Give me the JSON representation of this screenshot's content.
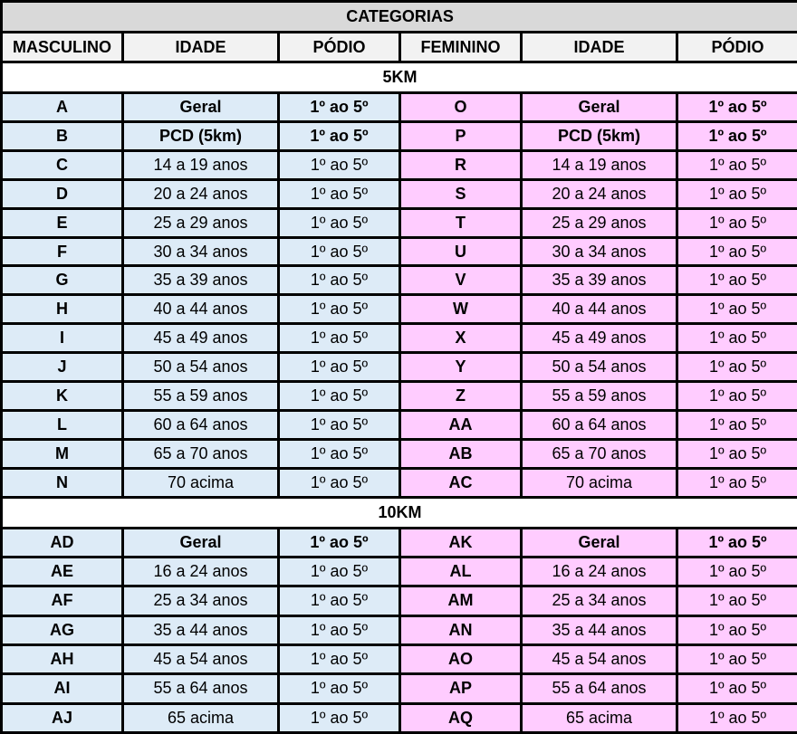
{
  "title": "CATEGORIAS",
  "headers": [
    "MASCULINO",
    "IDADE",
    "PÓDIO",
    "FEMININO",
    "IDADE",
    "PÓDIO"
  ],
  "colors": {
    "title_bg": "#d9d9d9",
    "header_bg": "#f2f2f2",
    "male_bg": "#ddebf7",
    "female_bg": "#ffccff"
  },
  "sections": [
    {
      "label": "5KM",
      "rows": [
        {
          "m": "A",
          "m_age": "Geral",
          "m_pod": "1º ao 5º",
          "f": "O",
          "f_age": "Geral",
          "f_pod": "1º ao 5º",
          "bold": true
        },
        {
          "m": "B",
          "m_age": "PCD (5km)",
          "m_pod": "1º ao 5º",
          "f": "P",
          "f_age": "PCD (5km)",
          "f_pod": "1º ao 5º",
          "bold": true
        },
        {
          "m": "C",
          "m_age": "14 a 19 anos",
          "m_pod": "1º ao 5º",
          "f": "R",
          "f_age": "14 a 19 anos",
          "f_pod": "1º ao 5º"
        },
        {
          "m": "D",
          "m_age": "20 a 24 anos",
          "m_pod": "1º ao 5º",
          "f": "S",
          "f_age": "20 a 24 anos",
          "f_pod": "1º ao 5º"
        },
        {
          "m": "E",
          "m_age": "25 a 29 anos",
          "m_pod": "1º ao 5º",
          "f": "T",
          "f_age": "25 a 29 anos",
          "f_pod": "1º ao 5º"
        },
        {
          "m": "F",
          "m_age": "30 a 34 anos",
          "m_pod": "1º ao 5º",
          "f": "U",
          "f_age": "30 a 34 anos",
          "f_pod": "1º ao 5º"
        },
        {
          "m": "G",
          "m_age": "35 a 39 anos",
          "m_pod": "1º ao 5º",
          "f": "V",
          "f_age": "35 a 39 anos",
          "f_pod": "1º ao 5º"
        },
        {
          "m": "H",
          "m_age": "40 a 44 anos",
          "m_pod": "1º ao 5º",
          "f": "W",
          "f_age": "40 a 44 anos",
          "f_pod": "1º ao 5º"
        },
        {
          "m": "I",
          "m_age": "45 a 49 anos",
          "m_pod": "1º ao 5º",
          "f": "X",
          "f_age": "45 a 49 anos",
          "f_pod": "1º ao 5º"
        },
        {
          "m": "J",
          "m_age": "50 a 54 anos",
          "m_pod": "1º ao 5º",
          "f": "Y",
          "f_age": "50 a 54 anos",
          "f_pod": "1º ao 5º"
        },
        {
          "m": "K",
          "m_age": "55 a 59 anos",
          "m_pod": "1º ao 5º",
          "f": "Z",
          "f_age": "55 a 59 anos",
          "f_pod": "1º ao 5º"
        },
        {
          "m": "L",
          "m_age": "60 a 64 anos",
          "m_pod": "1º ao 5º",
          "f": "AA",
          "f_age": "60 a 64 anos",
          "f_pod": "1º ao 5º"
        },
        {
          "m": "M",
          "m_age": "65 a 70 anos",
          "m_pod": "1º ao 5º",
          "f": "AB",
          "f_age": "65 a 70 anos",
          "f_pod": "1º ao 5º"
        },
        {
          "m": "N",
          "m_age": "70 acima",
          "m_pod": "1º ao 5º",
          "f": "AC",
          "f_age": "70 acima",
          "f_pod": "1º ao 5º"
        }
      ]
    },
    {
      "label": "10KM",
      "rows": [
        {
          "m": "AD",
          "m_age": "Geral",
          "m_pod": "1º ao 5º",
          "f": "AK",
          "f_age": "Geral",
          "f_pod": "1º ao 5º",
          "bold": true
        },
        {
          "m": "AE",
          "m_age": "16 a 24 anos",
          "m_pod": "1º ao 5º",
          "f": "AL",
          "f_age": "16 a 24 anos",
          "f_pod": "1º ao 5º"
        },
        {
          "m": "AF",
          "m_age": "25 a 34 anos",
          "m_pod": "1º ao 5º",
          "f": "AM",
          "f_age": "25 a 34 anos",
          "f_pod": "1º ao 5º"
        },
        {
          "m": "AG",
          "m_age": "35 a 44 anos",
          "m_pod": "1º ao 5º",
          "f": "AN",
          "f_age": "35 a 44 anos",
          "f_pod": "1º ao 5º"
        },
        {
          "m": "AH",
          "m_age": "45 a 54 anos",
          "m_pod": "1º ao 5º",
          "f": "AO",
          "f_age": "45 a 54 anos",
          "f_pod": "1º ao 5º"
        },
        {
          "m": "AI",
          "m_age": "55 a 64 anos",
          "m_pod": "1º ao 5º",
          "f": "AP",
          "f_age": "55 a 64 anos",
          "f_pod": "1º ao 5º"
        },
        {
          "m": "AJ",
          "m_age": "65 acima",
          "m_pod": "1º ao 5º",
          "f": "AQ",
          "f_age": "65 acima",
          "f_pod": "1º ao 5º"
        }
      ]
    }
  ]
}
